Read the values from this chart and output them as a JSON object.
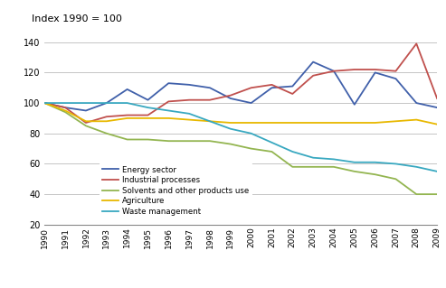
{
  "years": [
    1990,
    1991,
    1992,
    1993,
    1994,
    1995,
    1996,
    1997,
    1998,
    1999,
    2000,
    2001,
    2002,
    2003,
    2004,
    2005,
    2006,
    2007,
    2008,
    2009
  ],
  "energy_sector": [
    100,
    97,
    95,
    100,
    109,
    102,
    113,
    112,
    110,
    103,
    100,
    110,
    111,
    127,
    121,
    99,
    120,
    116,
    100,
    97
  ],
  "industrial_processes": [
    100,
    97,
    87,
    91,
    92,
    92,
    101,
    102,
    102,
    105,
    110,
    112,
    106,
    118,
    121,
    122,
    122,
    121,
    139,
    103
  ],
  "solvents": [
    100,
    94,
    85,
    80,
    76,
    76,
    75,
    75,
    75,
    73,
    70,
    68,
    58,
    58,
    58,
    55,
    53,
    50,
    40,
    40
  ],
  "agriculture": [
    100,
    95,
    88,
    88,
    90,
    90,
    90,
    89,
    88,
    87,
    87,
    87,
    87,
    87,
    87,
    87,
    87,
    88,
    89,
    86
  ],
  "waste_management": [
    100,
    100,
    100,
    100,
    100,
    97,
    95,
    93,
    88,
    83,
    80,
    74,
    68,
    64,
    63,
    61,
    61,
    60,
    58,
    55
  ],
  "series_colors": {
    "energy_sector": "#4060aa",
    "industrial_processes": "#c0504d",
    "solvents": "#93b550",
    "agriculture": "#e8b800",
    "waste_management": "#38a8c0"
  },
  "series_labels": {
    "energy_sector": "Energy sector",
    "industrial_processes": "Industrial processes",
    "solvents": "Solvents and other products use",
    "agriculture": "Agriculture",
    "waste_management": "Waste management"
  },
  "title": "Index 1990 = 100",
  "ylim": [
    20,
    145
  ],
  "yticks": [
    20,
    40,
    60,
    80,
    100,
    120,
    140
  ],
  "grid_color": "#bbbbbb",
  "bg_color": "#ffffff",
  "line_width": 1.3
}
